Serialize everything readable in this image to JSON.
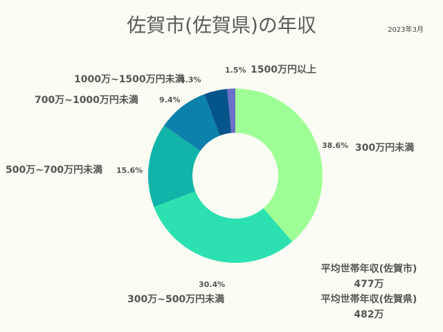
{
  "chart_data": {
    "type": "pie",
    "title": "佐賀市(佐賀県)の年収",
    "date_note": "2023年3月",
    "categories": [
      "300万円未満",
      "300万~500万円未満",
      "500万~700万円未満",
      "700万~1000万円未満",
      "1000万~1500万円未満",
      "1500万円以上"
    ],
    "values": [
      38.6,
      30.4,
      15.6,
      9.4,
      4.3,
      1.5
    ],
    "value_labels": [
      "38.6%",
      "30.4%",
      "15.6%",
      "9.4%",
      "4.3%",
      "1.5%"
    ],
    "colors": [
      "#9eff96",
      "#2de0b0",
      "#12b3a8",
      "#0c81ab",
      "#06558a",
      "#6a6fc8"
    ],
    "donut": true
  },
  "stats": {
    "city_label": "平均世帯年収(佐賀市)",
    "city_value": "477万",
    "pref_label": "平均世帯年収(佐賀県)",
    "pref_value": "482万"
  }
}
